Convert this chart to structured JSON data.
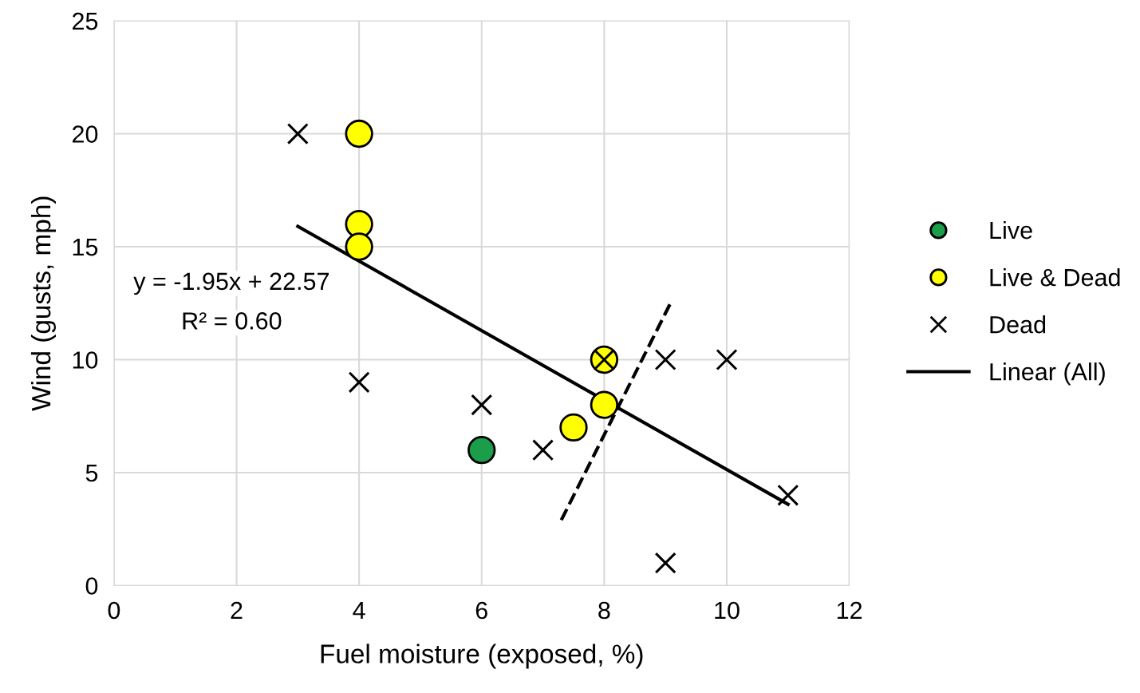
{
  "chart_data": {
    "type": "scatter",
    "xlabel": "Fuel moisture (exposed, %)",
    "ylabel": "Wind (gusts, mph)",
    "xlim": [
      0,
      12
    ],
    "xticks": [
      0,
      2,
      4,
      6,
      8,
      10,
      12
    ],
    "ylim": [
      0,
      25
    ],
    "yticks": [
      0,
      5,
      10,
      15,
      20,
      25
    ],
    "grid": true,
    "legend": "right",
    "series": [
      {
        "name": "Live",
        "marker": "circle",
        "color": "#1a9e4a",
        "x": [
          6
        ],
        "values": [
          6
        ]
      },
      {
        "name": "Live & Dead",
        "marker": "circle",
        "color": "#ffff00",
        "x": [
          4,
          4,
          4,
          8,
          7.5,
          8
        ],
        "values": [
          20,
          16,
          15,
          10,
          7,
          8
        ]
      },
      {
        "name": "Dead",
        "marker": "cross",
        "color": "#000000",
        "x": [
          3,
          4,
          6,
          7,
          8,
          9,
          10,
          11,
          9
        ],
        "values": [
          20,
          9,
          8,
          6,
          10,
          10,
          10,
          4,
          1
        ]
      },
      {
        "name": "Linear (All)",
        "type": "line",
        "marker": "none",
        "line_style": "solid",
        "color": "#000000",
        "x": [
          3,
          11
        ],
        "values": [
          15.9,
          3.6
        ]
      },
      {
        "type": "line",
        "marker": "none",
        "line_style": "dashed",
        "color": "#000000",
        "x": [
          7.3,
          9.1
        ],
        "values": [
          2.9,
          12.6
        ]
      }
    ],
    "annotations": [
      "y = -1.95x + 22.57",
      "R² = 0.60"
    ]
  }
}
